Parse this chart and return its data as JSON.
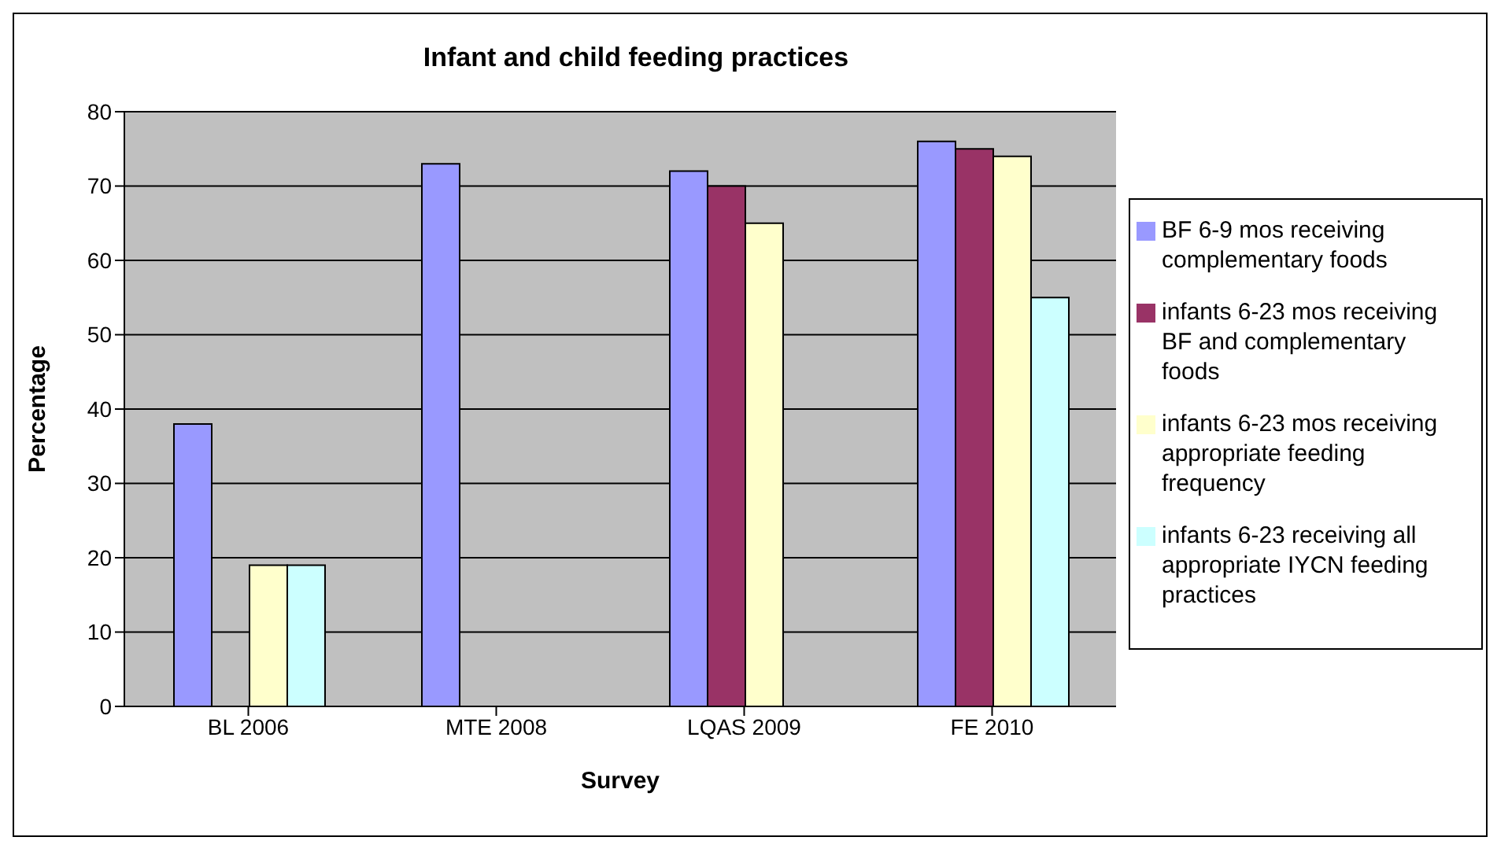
{
  "chart_data": {
    "type": "bar",
    "title": "Infant and child feeding practices",
    "xlabel": "Survey",
    "ylabel": "Percentage",
    "categories": [
      "BL 2006",
      "MTE 2008",
      "LQAS 2009",
      "FE 2010"
    ],
    "series": [
      {
        "name": "BF 6-9 mos receiving complementary foods",
        "color": "#9999ff",
        "values": [
          38,
          73,
          72,
          76
        ]
      },
      {
        "name": "infants 6-23 mos receiving BF and complementary foods",
        "color": "#993366",
        "values": [
          null,
          null,
          70,
          75
        ]
      },
      {
        "name": "infants 6-23 mos receiving appropriate feeding frequency",
        "color": "#ffffcc",
        "values": [
          19,
          null,
          65,
          74
        ]
      },
      {
        "name": "infants 6-23 receiving all appropriate IYCN feeding practices",
        "color": "#ccffff",
        "values": [
          19,
          null,
          null,
          55
        ]
      }
    ],
    "ylim": [
      0,
      80
    ],
    "yticks": [
      0,
      10,
      20,
      30,
      40,
      50,
      60,
      70,
      80
    ],
    "grid": "y",
    "legend": "right"
  }
}
